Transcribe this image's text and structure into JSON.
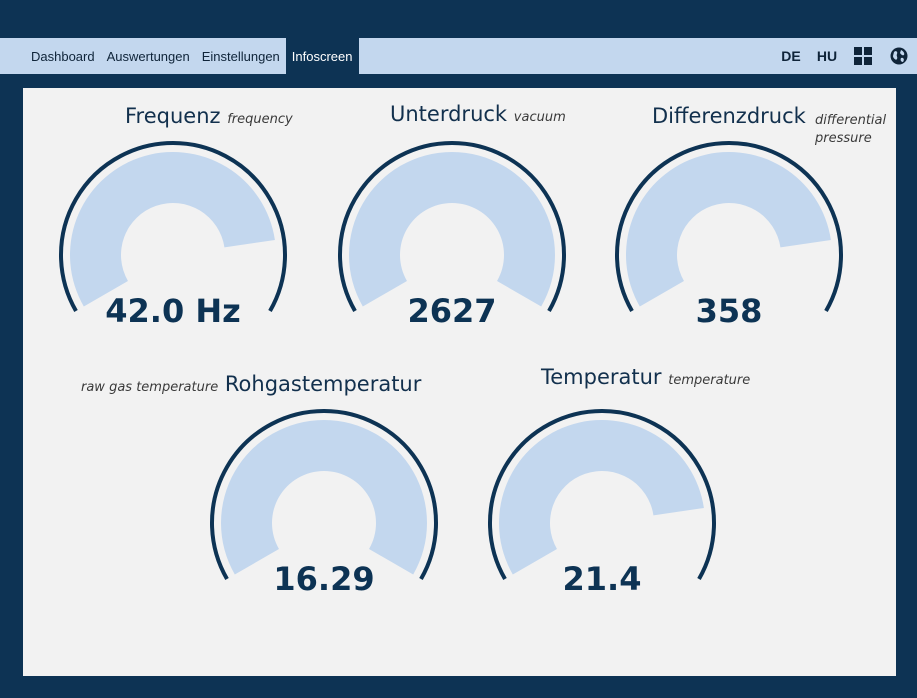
{
  "nav": {
    "tabs": [
      "Dashboard",
      "Auswertungen",
      "Einstellungen",
      "Infoscreen"
    ],
    "active_tab": "Infoscreen",
    "lang_de": "DE",
    "lang_hu": "HU",
    "grid_icon": "grid-icon",
    "globe_icon": "globe-icon"
  },
  "gauges": {
    "frequenz": {
      "title": "Frequenz",
      "subtitle": "frequency",
      "value": "42.0 Hz",
      "fill_fraction": 0.84
    },
    "unterdruck": {
      "title": "Unterdruck",
      "subtitle": "vacuum",
      "value": "2627",
      "fill_fraction": 1.0
    },
    "differenzdruck": {
      "title": "Differenzdruck",
      "subtitle_line1": "differential",
      "subtitle_line2": "pressure",
      "fill_fraction": 0.84,
      "value": "358"
    },
    "rohgas": {
      "title": "Rohgastemperatur",
      "subtitle": "raw gas temperature",
      "value": "16.29",
      "fill_fraction": 1.0
    },
    "temperatur": {
      "title": "Temperatur",
      "subtitle": "temperature",
      "value": "21.4",
      "fill_fraction": 0.84
    }
  },
  "colors": {
    "background": "#0d3354",
    "navbar": "#c3d7ee",
    "panel": "#f2f2f2",
    "gauge_fill": "#c3d7ee",
    "gauge_outline": "#0d3354"
  }
}
